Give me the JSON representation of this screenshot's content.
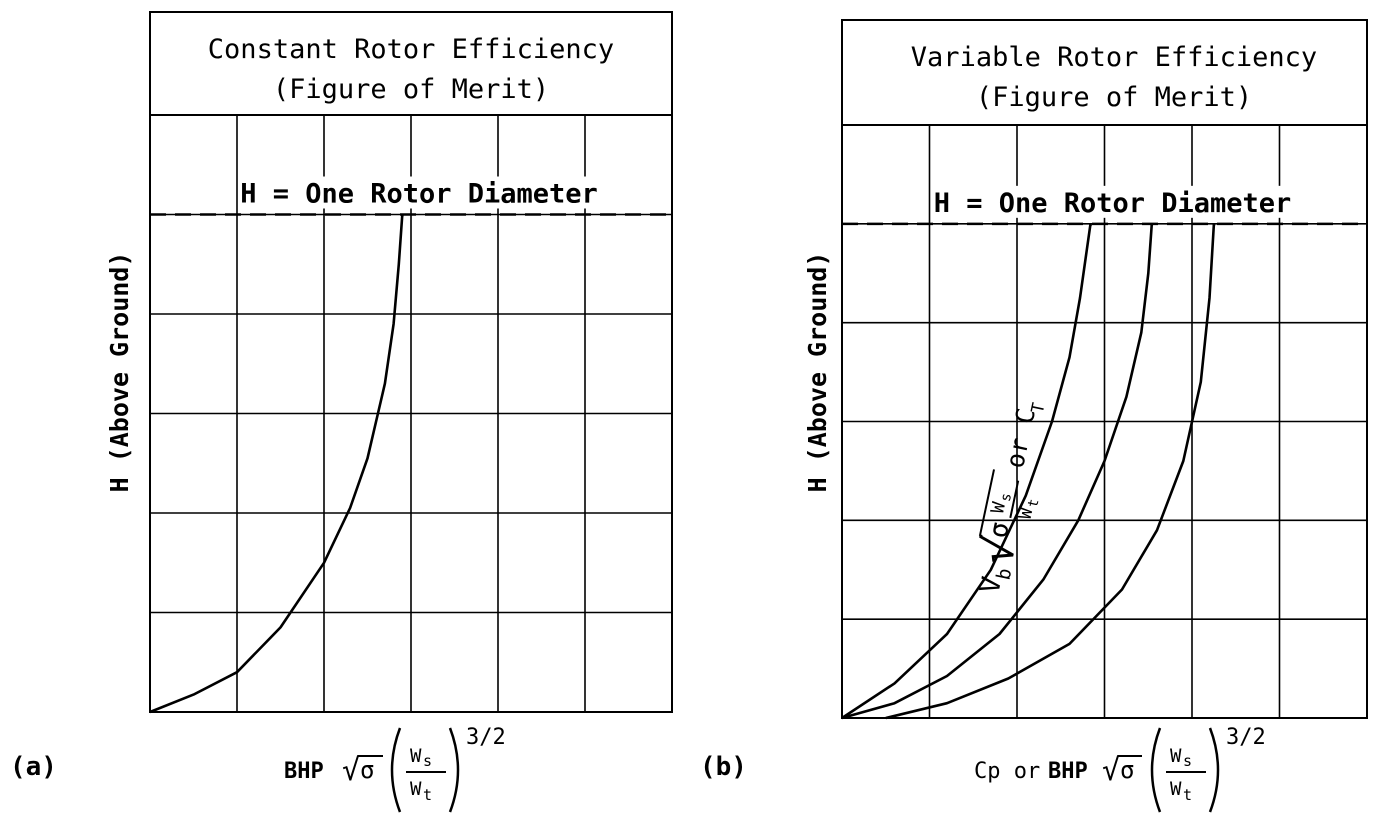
{
  "chart_data": [
    {
      "type": "line",
      "panel_label": "(a)",
      "title_lines": [
        "Constant Rotor Efficiency",
        "(Figure of Merit)"
      ],
      "ylabel": "H (Above Ground)",
      "xlabel": {
        "prefix": "BHP",
        "sqrt_symbol": "√",
        "sigma": "σ",
        "frac_num": "W",
        "frac_num_sub": "s",
        "frac_den": "W",
        "frac_den_sub": "t",
        "exponent": "3/2"
      },
      "reference_line": {
        "label": "H = One Rotor Diameter",
        "y": 1.0
      },
      "xlim": [
        0,
        6
      ],
      "ylim": [
        0,
        1.2
      ],
      "grid": true,
      "series": [
        {
          "x": [
            0,
            0.5,
            1.0,
            1.5,
            2.0,
            2.3,
            2.5,
            2.7,
            2.8,
            2.86,
            2.9
          ],
          "y": [
            0,
            0.035,
            0.08,
            0.17,
            0.3,
            0.41,
            0.51,
            0.66,
            0.78,
            0.9,
            1.0
          ]
        }
      ]
    },
    {
      "type": "line",
      "panel_label": "(b)",
      "title_lines": [
        "Variable Rotor Efficiency",
        "(Figure of Merit)"
      ],
      "ylabel": "H (Above Ground)",
      "xlabel": {
        "lead": "Cp or",
        "prefix": "BHP",
        "sqrt_symbol": "√",
        "sigma": "σ",
        "frac_num": "W",
        "frac_num_sub": "s",
        "frac_den": "W",
        "frac_den_sub": "t",
        "exponent": "3/2"
      },
      "curve_annotation": {
        "text1": "V",
        "text1_sub": "b",
        "sqrt_symbol": "√",
        "sigma": "σ",
        "frac_num": "W",
        "frac_num_sub": "s",
        "frac_den": "W",
        "frac_den_sub": "t",
        "text2": "or C",
        "text2_sub": "T"
      },
      "reference_line": {
        "label": "H = One Rotor Diameter",
        "y": 1.0
      },
      "xlim": [
        0,
        6
      ],
      "ylim": [
        0,
        1.2
      ],
      "grid": true,
      "series": [
        {
          "x": [
            0,
            0.6,
            1.2,
            1.7,
            2.1,
            2.4,
            2.6,
            2.72,
            2.8,
            2.84
          ],
          "y": [
            0,
            0.07,
            0.17,
            0.3,
            0.45,
            0.6,
            0.73,
            0.85,
            0.95,
            1.0
          ]
        },
        {
          "x": [
            0,
            0.6,
            1.2,
            1.8,
            2.3,
            2.7,
            3.0,
            3.25,
            3.42,
            3.5,
            3.54
          ],
          "y": [
            0,
            0.03,
            0.085,
            0.17,
            0.28,
            0.4,
            0.52,
            0.65,
            0.78,
            0.9,
            1.0
          ]
        },
        {
          "x": [
            0.5,
            1.2,
            1.9,
            2.6,
            3.2,
            3.6,
            3.9,
            4.1,
            4.2,
            4.25
          ],
          "y": [
            0,
            0.03,
            0.08,
            0.15,
            0.26,
            0.38,
            0.52,
            0.68,
            0.85,
            1.0
          ]
        }
      ]
    }
  ]
}
